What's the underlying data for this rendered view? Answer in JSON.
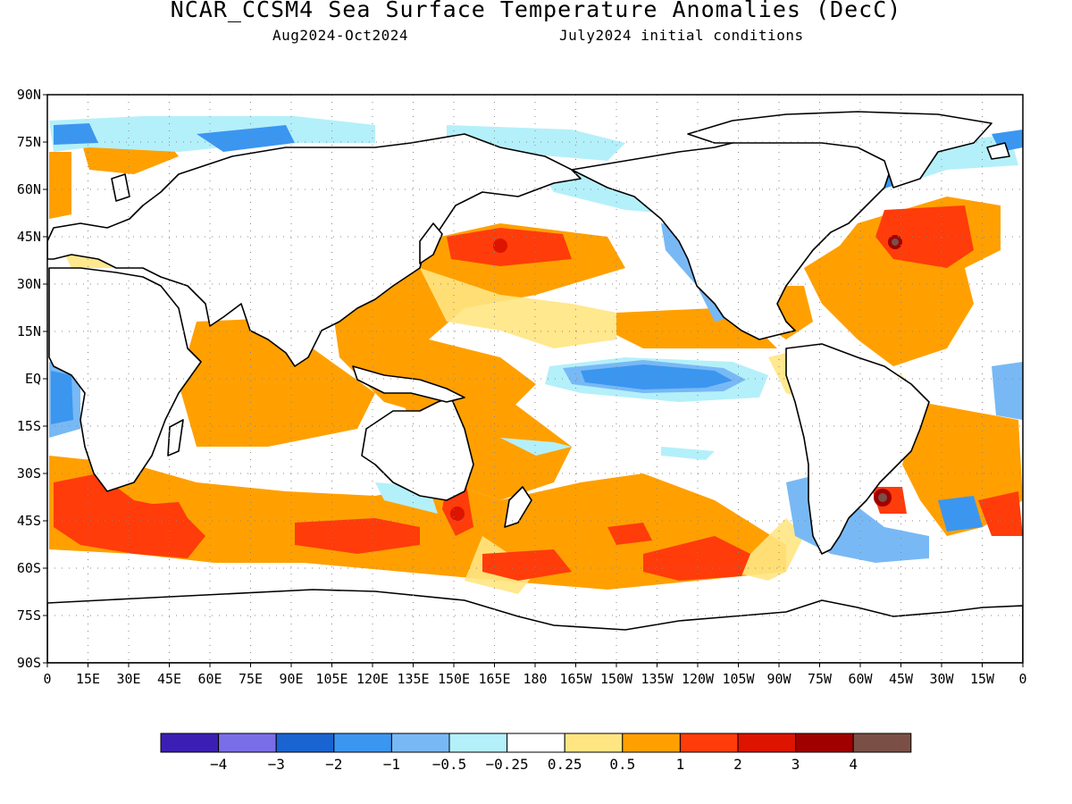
{
  "title": "NCAR_CCSM4 Sea Surface Temperature Anomalies (DecC)",
  "subtitle_left": "Aug2024-Oct2024",
  "subtitle_right": "July2024 initial conditions",
  "lat_labels": [
    "90N",
    "75N",
    "60N",
    "45N",
    "30N",
    "15N",
    "EQ",
    "15S",
    "30S",
    "45S",
    "60S",
    "75S",
    "90S"
  ],
  "lon_labels": [
    "0",
    "15E",
    "30E",
    "45E",
    "60E",
    "75E",
    "90E",
    "105E",
    "120E",
    "135E",
    "150E",
    "165E",
    "180",
    "165W",
    "150W",
    "135W",
    "120W",
    "105W",
    "90W",
    "75W",
    "60W",
    "45W",
    "30W",
    "15W",
    "0"
  ],
  "colorbar": {
    "colors": [
      "#3b1fb4",
      "#7a6ee8",
      "#1a64d2",
      "#3b96f0",
      "#78b9f5",
      "#b4f0fa",
      "#ffffff",
      "#ffe682",
      "#ffa000",
      "#ff3c0a",
      "#dc1400",
      "#a00000",
      "#7a5046"
    ],
    "labels": [
      "-4",
      "-3",
      "-2",
      "-1",
      "-0.5",
      "-0.25",
      "0.25",
      "0.5",
      "1",
      "2",
      "3",
      "4"
    ]
  }
}
